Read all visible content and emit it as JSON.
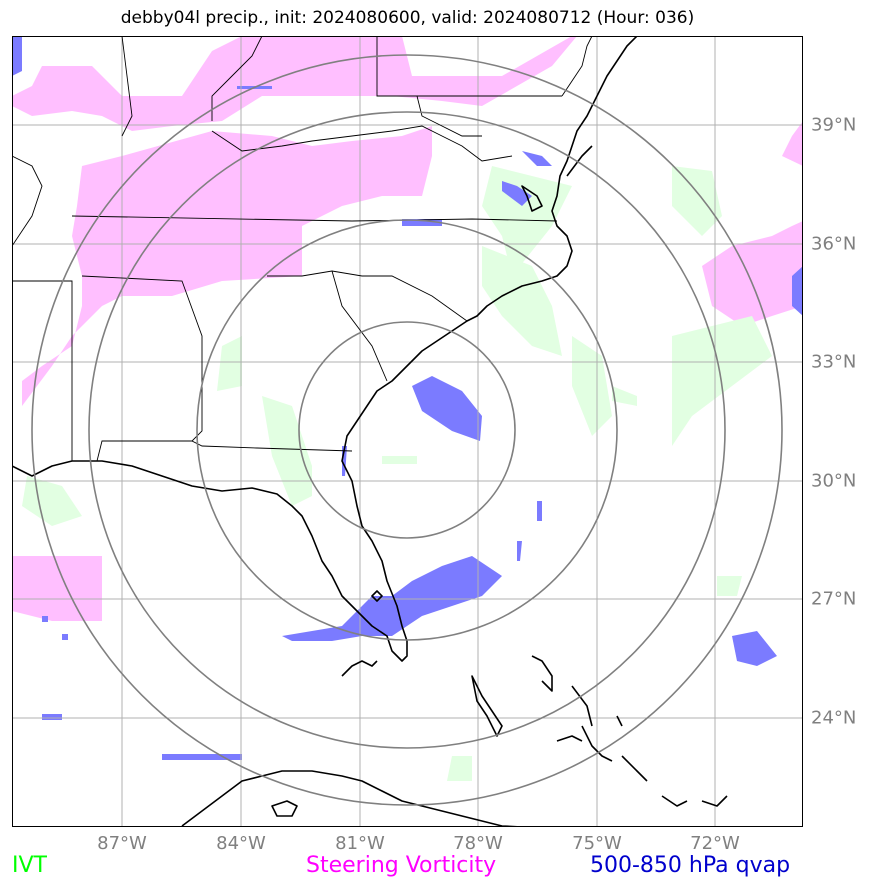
{
  "title": "debby04l precip., init: 2024080600, valid: 2024080712 (Hour: 036)",
  "lon_labels": [
    "87°W",
    "84°W",
    "81°W",
    "78°W",
    "75°W",
    "72°W"
  ],
  "lat_labels": [
    "39°N",
    "36°N",
    "33°N",
    "30°N",
    "27°N",
    "24°N"
  ],
  "legend": {
    "ivt": "IVT",
    "steering_vorticity": "Steering Vorticity",
    "qvap": "500-850 hPa qvap"
  },
  "colors": {
    "ivt": "#00ff00",
    "steering_vorticity": "#ff00ff",
    "qvap": "#0000cc",
    "ivt_fill": "#e2ffe2",
    "vort_fill": "#ffbfff",
    "qvap_fill": "#7b7bff",
    "grid": "#b0b0b0",
    "range_rings": "#808080",
    "coast": "#000000"
  }
}
